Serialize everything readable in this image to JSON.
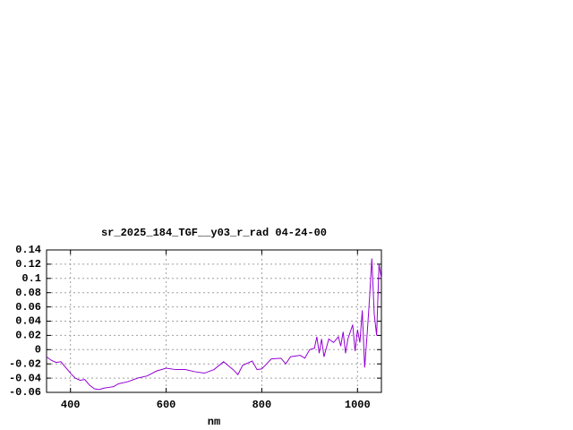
{
  "chart_data": {
    "type": "line",
    "title": "sr_2025_184_TGF__y03_r_rad 04-24-00",
    "xlabel": "nm",
    "x": [
      350,
      360,
      370,
      380,
      390,
      400,
      410,
      420,
      430,
      440,
      450,
      460,
      470,
      480,
      490,
      500,
      520,
      540,
      560,
      580,
      600,
      620,
      640,
      660,
      680,
      700,
      720,
      740,
      750,
      760,
      780,
      790,
      800,
      810,
      820,
      840,
      850,
      860,
      880,
      890,
      900,
      910,
      915,
      920,
      925,
      930,
      940,
      950,
      960,
      965,
      970,
      975,
      980,
      990,
      995,
      1000,
      1005,
      1010,
      1015,
      1020,
      1025,
      1030,
      1035,
      1040,
      1045,
      1050
    ],
    "series": [
      {
        "color": "#9400d3",
        "values": [
          -0.01,
          -0.015,
          -0.018,
          -0.017,
          -0.025,
          -0.033,
          -0.04,
          -0.043,
          -0.042,
          -0.05,
          -0.055,
          -0.056,
          -0.054,
          -0.053,
          -0.052,
          -0.048,
          -0.045,
          -0.04,
          -0.037,
          -0.03,
          -0.026,
          -0.028,
          -0.028,
          -0.031,
          -0.033,
          -0.028,
          -0.017,
          -0.028,
          -0.035,
          -0.022,
          -0.016,
          -0.028,
          -0.027,
          -0.02,
          -0.013,
          -0.012,
          -0.02,
          -0.01,
          -0.008,
          -0.012,
          0.0,
          0.002,
          0.018,
          -0.005,
          0.015,
          -0.01,
          0.015,
          0.01,
          0.018,
          0.005,
          0.025,
          -0.005,
          0.015,
          0.035,
          -0.002,
          0.028,
          0.01,
          0.055,
          -0.025,
          0.02,
          0.07,
          0.128,
          0.05,
          0.02,
          0.12,
          0.1
        ]
      }
    ],
    "xlim": [
      350,
      1050
    ],
    "xticks": [
      400,
      600,
      800,
      1000
    ],
    "ylim": [
      -0.06,
      0.14
    ],
    "yticks": [
      0.14,
      0.12,
      0.1,
      0.08,
      0.06,
      0.04,
      0.02,
      0,
      -0.02,
      -0.04,
      -0.06
    ],
    "grid": true
  }
}
